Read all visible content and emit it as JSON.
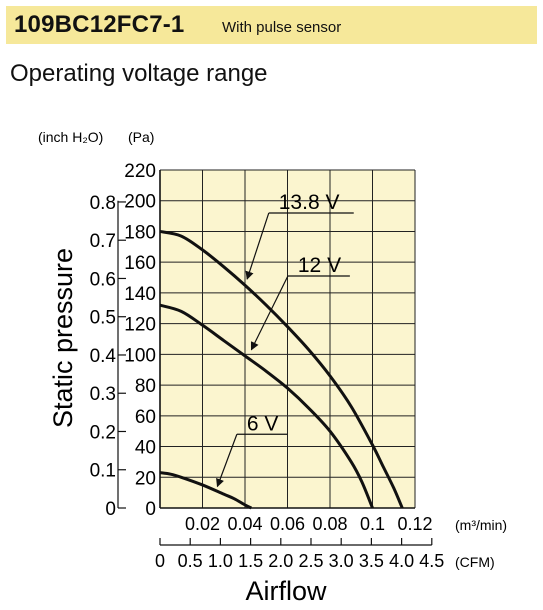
{
  "header": {
    "model": "109BC12FC7-1",
    "subtitle": "With pulse sensor",
    "colors": {
      "band": "#f6e89a",
      "plot_bg": "#fbf5cf"
    }
  },
  "section_title": "Operating voltage range",
  "chart_data": {
    "type": "line",
    "title": "Operating voltage range",
    "ylabel": "Static pressure",
    "xlabel": "Airflow",
    "y_unit_inch": "(inch H₂O)",
    "y_unit_pa": "(Pa)",
    "x_unit_m3": "(m³/min)",
    "x_unit_cfm": "(CFM)",
    "xlim": [
      0,
      0.12
    ],
    "ylim": [
      0,
      220
    ],
    "grid": true,
    "x_ticks": [
      "0.02",
      "0.04",
      "0.06",
      "0.08",
      "0.1",
      "0.12"
    ],
    "y_ticks_pa": [
      "0",
      "20",
      "40",
      "60",
      "80",
      "100",
      "120",
      "140",
      "160",
      "180",
      "200",
      "220"
    ],
    "y_ticks_inch": [
      {
        "label": "0",
        "pa": 0
      },
      {
        "label": "0.1",
        "pa": 24.9
      },
      {
        "label": "0.2",
        "pa": 49.8
      },
      {
        "label": "0.3",
        "pa": 74.7
      },
      {
        "label": "0.4",
        "pa": 99.6
      },
      {
        "label": "0.5",
        "pa": 124.5
      },
      {
        "label": "0.6",
        "pa": 149.4
      },
      {
        "label": "0.7",
        "pa": 174.3
      },
      {
        "label": "0.8",
        "pa": 199.2
      }
    ],
    "cfm_ticks": [
      "0",
      "0.5",
      "1.0",
      "1.5",
      "2.0",
      "2.5",
      "3.0",
      "3.5",
      "4.0",
      "4.5"
    ],
    "series": [
      {
        "name": "13.8 V",
        "x": [
          0,
          0.01,
          0.02,
          0.03,
          0.04,
          0.05,
          0.06,
          0.07,
          0.08,
          0.09,
          0.1,
          0.105,
          0.11,
          0.114
        ],
        "y": [
          180,
          177,
          168,
          157,
          145,
          132,
          118,
          103,
          86,
          66,
          41,
          27,
          13,
          0
        ]
      },
      {
        "name": "12 V",
        "x": [
          0,
          0.01,
          0.02,
          0.03,
          0.04,
          0.05,
          0.06,
          0.07,
          0.08,
          0.09,
          0.095,
          0.1
        ],
        "y": [
          132,
          128,
          119,
          109,
          99,
          89,
          78,
          65,
          50,
          30,
          17,
          0
        ]
      },
      {
        "name": "6 V",
        "x": [
          0,
          0.005,
          0.01,
          0.02,
          0.03,
          0.035,
          0.04,
          0.043
        ],
        "y": [
          23,
          22,
          20,
          15,
          9,
          6,
          2,
          0
        ]
      }
    ],
    "annotations": [
      {
        "series": "13.8 V",
        "text": "13.8 V",
        "label_x": 0.054,
        "label_y": 192,
        "point_x": 0.041,
        "point_y": 149
      },
      {
        "series": "12 V",
        "text": "12 V",
        "label_x": 0.063,
        "label_y": 151,
        "point_x": 0.043,
        "point_y": 103
      },
      {
        "series": "6 V",
        "text": "6 V",
        "label_x": 0.039,
        "label_y": 48,
        "point_x": 0.027,
        "point_y": 14
      }
    ]
  }
}
